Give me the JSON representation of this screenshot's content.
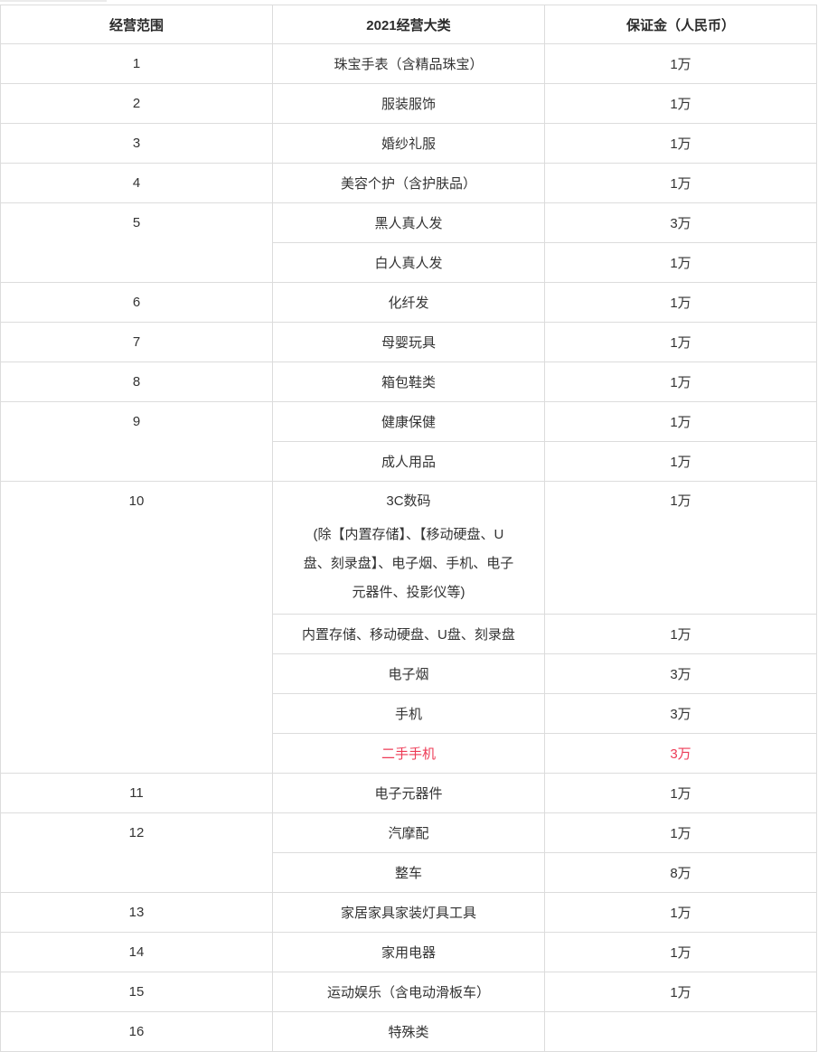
{
  "colors": {
    "highlight_red": "#ed3b56",
    "border_gray": "#dcdcdc",
    "text_dark": "#333333"
  },
  "table": {
    "headers": [
      "经营范围",
      "2021经营大类",
      "保证金（人民币）"
    ],
    "groups": [
      {
        "scope": "1",
        "items": [
          {
            "category": "珠宝手表（含精品珠宝）",
            "deposit": "1万"
          }
        ]
      },
      {
        "scope": "2",
        "items": [
          {
            "category": "服装服饰",
            "deposit": "1万"
          }
        ]
      },
      {
        "scope": "3",
        "items": [
          {
            "category": "婚纱礼服",
            "deposit": "1万"
          }
        ]
      },
      {
        "scope": "4",
        "items": [
          {
            "category": "美容个护（含护肤品）",
            "deposit": "1万"
          }
        ]
      },
      {
        "scope": "5",
        "items": [
          {
            "category": "黑人真人发",
            "deposit": "3万"
          },
          {
            "category": "白人真人发",
            "deposit": "1万"
          }
        ]
      },
      {
        "scope": "6",
        "items": [
          {
            "category": "化纤发",
            "deposit": "1万"
          }
        ]
      },
      {
        "scope": "7",
        "items": [
          {
            "category": "母婴玩具",
            "deposit": "1万"
          }
        ]
      },
      {
        "scope": "8",
        "items": [
          {
            "category": "箱包鞋类",
            "deposit": "1万"
          }
        ]
      },
      {
        "scope": "9",
        "items": [
          {
            "category": "健康保健",
            "deposit": "1万"
          },
          {
            "category": "成人用品",
            "deposit": "1万"
          }
        ]
      },
      {
        "scope": "10",
        "items": [
          {
            "category": "3C数码 (除【内置存储】、【移动硬盘、U盘、刻录盘】、电子烟、手机、电子元器件、投影仪等)",
            "category_lines": [
              "3C数码",
              "(除【内置存储】、【移动硬盘、U",
              "盘、刻录盘】、电子烟、手机、电子",
              "元器件、投影仪等)"
            ],
            "deposit": "1万"
          },
          {
            "category": "内置存储、移动硬盘、U盘、刻录盘",
            "deposit": "1万"
          },
          {
            "category": "电子烟",
            "deposit": "3万"
          },
          {
            "category": "手机",
            "deposit": "3万"
          },
          {
            "category": "二手手机",
            "deposit": "3万",
            "highlight": true
          }
        ]
      },
      {
        "scope": "11",
        "items": [
          {
            "category": "电子元器件",
            "deposit": "1万"
          }
        ]
      },
      {
        "scope": "12",
        "items": [
          {
            "category": "汽摩配",
            "deposit": "1万"
          },
          {
            "category": "整车",
            "deposit": "8万"
          }
        ]
      },
      {
        "scope": "13",
        "items": [
          {
            "category": "家居家具家装灯具工具",
            "deposit": "1万"
          }
        ]
      },
      {
        "scope": "14",
        "items": [
          {
            "category": "家用电器",
            "deposit": "1万"
          }
        ]
      },
      {
        "scope": "15",
        "items": [
          {
            "category": "运动娱乐（含电动滑板车）",
            "deposit": "1万"
          }
        ]
      },
      {
        "scope": "16",
        "items": [
          {
            "category": "特殊类",
            "deposit": ""
          }
        ]
      }
    ]
  }
}
